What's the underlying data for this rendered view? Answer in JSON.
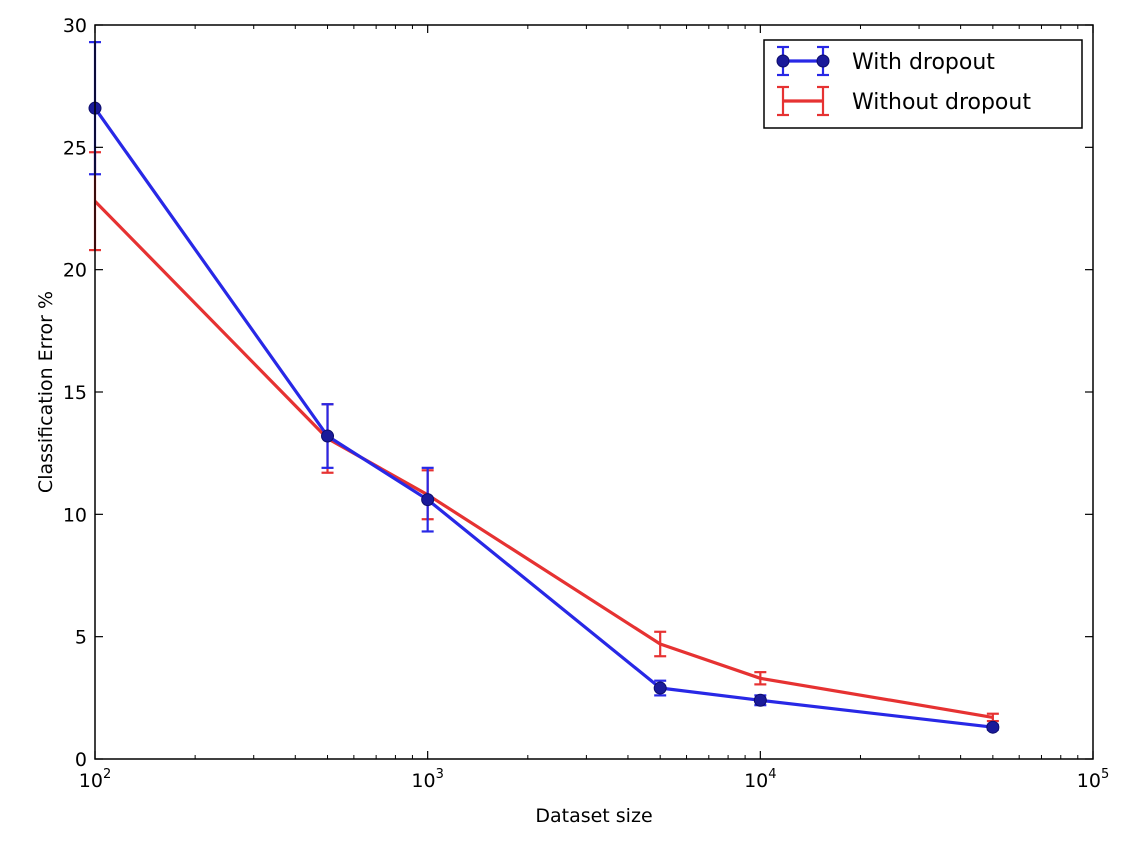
{
  "chart_data": {
    "type": "line",
    "title": "",
    "xlabel": "Dataset size",
    "ylabel": "Classification Error %",
    "x_scale": "log",
    "xlim": [
      100,
      100000
    ],
    "ylim": [
      0,
      30
    ],
    "x_ticks": [
      {
        "value": 100,
        "base": "10",
        "exp": "2"
      },
      {
        "value": 1000,
        "base": "10",
        "exp": "3"
      },
      {
        "value": 10000,
        "base": "10",
        "exp": "4"
      },
      {
        "value": 100000,
        "base": "10",
        "exp": "5"
      }
    ],
    "y_ticks": [
      "0",
      "5",
      "10",
      "15",
      "20",
      "25",
      "30"
    ],
    "grid": false,
    "legend_position": "top-right",
    "x": [
      100,
      500,
      1000,
      5000,
      10000,
      50000
    ],
    "series": [
      {
        "name": "With dropout",
        "color": "#2828e6",
        "marker": "circle",
        "values": [
          26.6,
          13.2,
          10.6,
          2.9,
          2.4,
          1.3
        ],
        "errors": [
          2.7,
          1.3,
          1.3,
          0.3,
          0.2,
          0.1
        ]
      },
      {
        "name": "Without dropout",
        "color": "#e63232",
        "marker": "none",
        "values": [
          22.8,
          13.1,
          10.8,
          4.7,
          3.3,
          1.7
        ],
        "errors": [
          2.0,
          1.4,
          1.0,
          0.5,
          0.25,
          0.15
        ]
      }
    ]
  }
}
